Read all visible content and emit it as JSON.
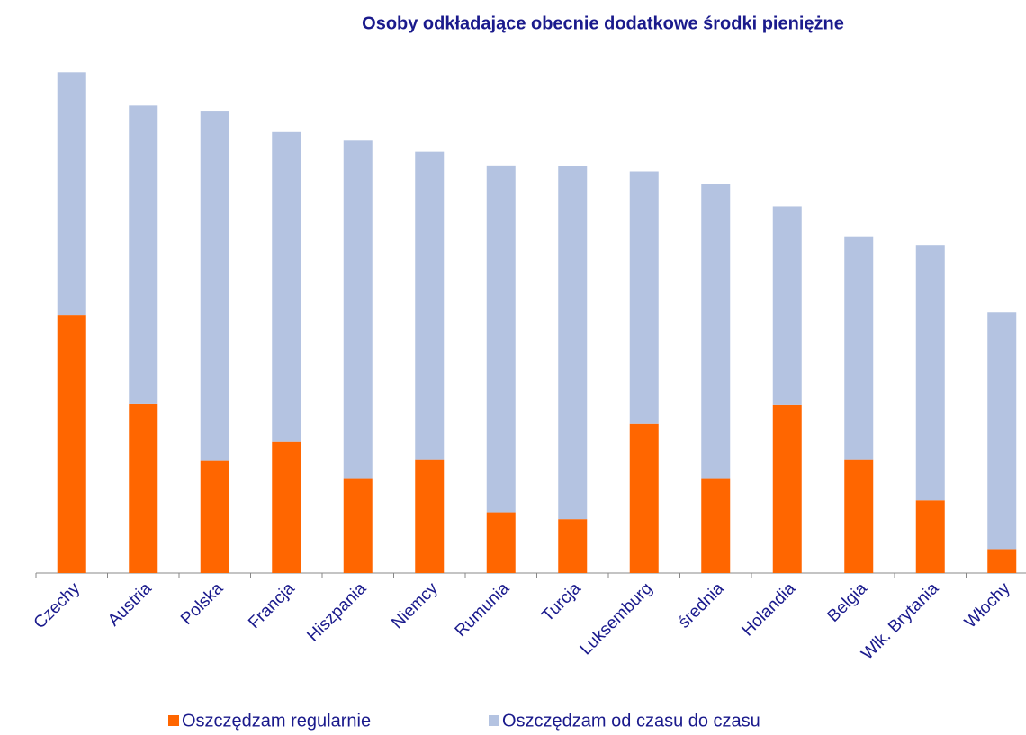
{
  "chart_data": {
    "type": "stacked_bar",
    "title": "Osoby odkładające obecnie dodatkowe środki pieniężne",
    "categories": [
      "Czechy",
      "Austria",
      "Polska",
      "Francja",
      "Hiszpania",
      "Niemcy",
      "Rumunia",
      "Turcja",
      "Luksemburg",
      "średnia",
      "Holandia",
      "Belgia",
      "Wlk. Brytania",
      "Włochy"
    ],
    "series": [
      {
        "name": "Oszczędzam regularnie",
        "color": "#ff6600",
        "values": [
          30.2,
          19.8,
          13.2,
          15.4,
          11.1,
          13.3,
          7.1,
          6.3,
          17.5,
          11.1,
          19.7,
          13.3,
          8.5,
          2.8
        ]
      },
      {
        "name": "Oszczędzam od czasu do czasu",
        "color": "#b4c3e1",
        "values": [
          28.4,
          34.9,
          40.9,
          36.2,
          39.5,
          36.0,
          40.6,
          41.3,
          29.5,
          34.4,
          23.2,
          26.1,
          29.9,
          27.7
        ]
      }
    ],
    "ylim": [
      0,
      60
    ]
  }
}
